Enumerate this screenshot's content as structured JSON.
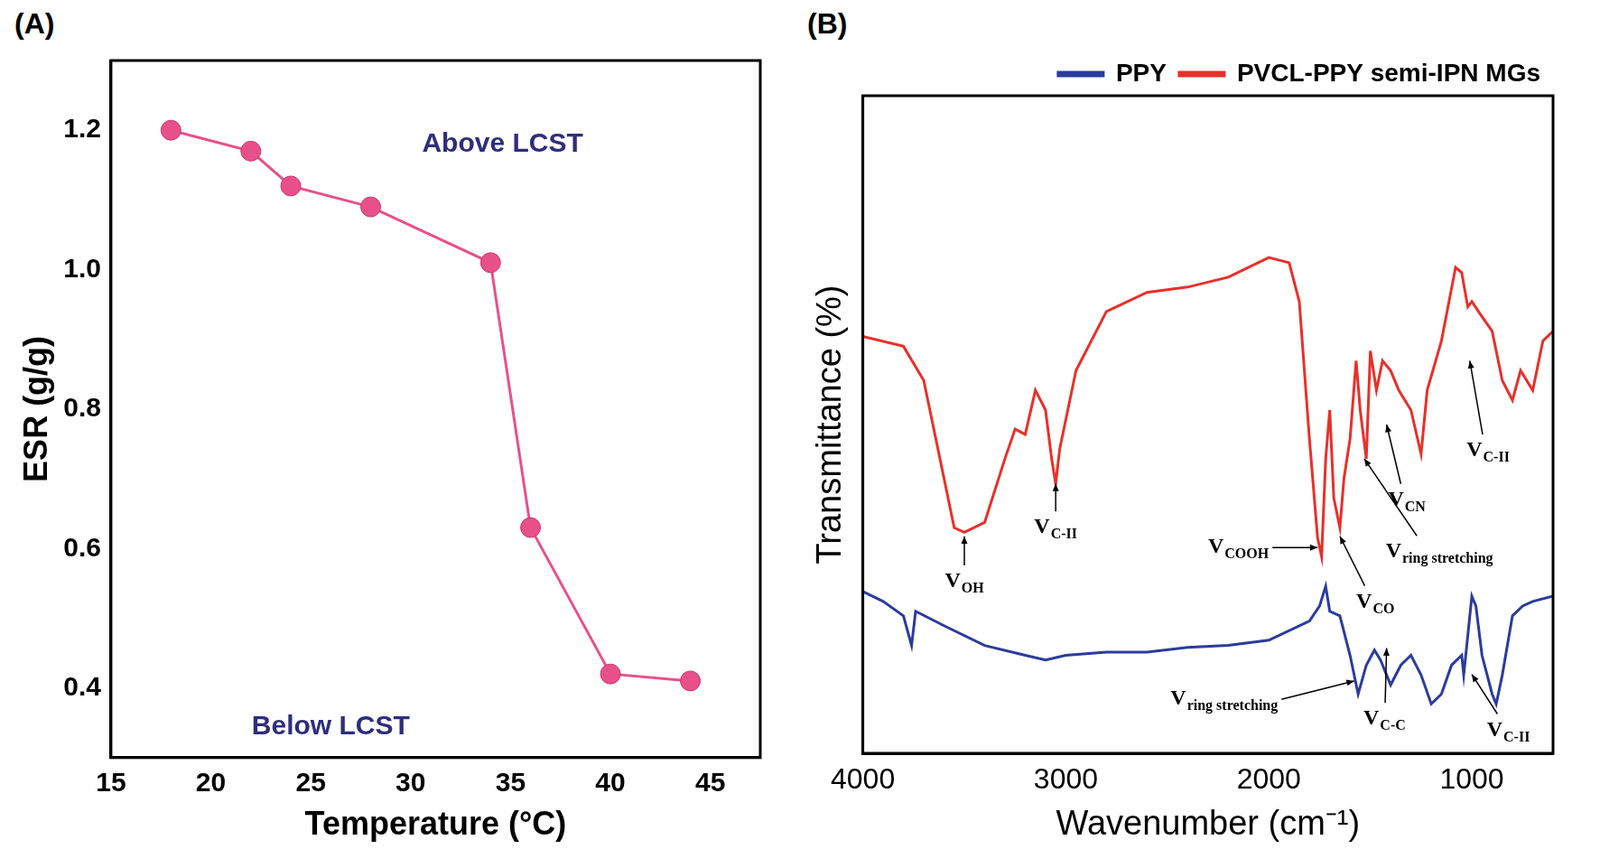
{
  "chart_data": [
    {
      "panel_label": "(A)",
      "type": "line",
      "x_label": "Temperature (°C)",
      "y_label": "ESR (g/g)",
      "x": [
        18,
        22,
        24,
        28,
        34,
        36,
        40,
        44
      ],
      "values": [
        1.2,
        1.17,
        1.12,
        1.09,
        1.01,
        0.63,
        0.42,
        0.41
      ],
      "color": "#e8508a",
      "marker": "circle",
      "line_style": "solid",
      "xlim": [
        15,
        47.5
      ],
      "xticks": [
        15,
        20,
        25,
        30,
        35,
        40,
        45
      ],
      "ylim": [
        0.3,
        1.3
      ],
      "yticks": [
        0.4,
        0.6,
        0.8,
        {
          "value": 1,
          "label": "1.0"
        },
        1.2
      ],
      "grid": false,
      "annotations": [
        {
          "text": "Above LCST",
          "x": 34.6,
          "y": 1.18
        },
        {
          "text": "Below LCST",
          "x": 26,
          "y": 0.344
        }
      ]
    },
    {
      "panel_label": "(B)",
      "type": "line",
      "x_label": "Wavenumber (cm⁻¹)",
      "y_label": "Transmittance (%)",
      "series": [
        {
          "name": "PPY",
          "color": "#2a3c9c",
          "line_style": "solid",
          "x": [
            4000,
            3900,
            3800,
            3760,
            3740,
            3600,
            3400,
            3200,
            3100,
            3000,
            2800,
            2600,
            2400,
            2200,
            2000,
            1800,
            1750,
            1720,
            1700,
            1650,
            1600,
            1560,
            1520,
            1480,
            1450,
            1400,
            1350,
            1300,
            1250,
            1200,
            1150,
            1100,
            1050,
            1040,
            1000,
            980,
            950,
            900,
            880,
            850,
            800,
            750,
            700,
            600
          ],
          "values": [
            24.6,
            23.1,
            20.9,
            16.4,
            21.6,
            19.4,
            16.4,
            14.9,
            14.2,
            14.9,
            15.4,
            15.4,
            16.1,
            16.4,
            17.2,
            20.1,
            22.4,
            25.4,
            21.6,
            20.9,
            14.9,
            9.0,
            13.4,
            15.7,
            14.2,
            10.4,
            13.4,
            14.9,
            11.9,
            7.5,
            9.0,
            13.4,
            14.9,
            11.9,
            23.9,
            22.4,
            14.9,
            9.0,
            7.5,
            11.9,
            20.9,
            22.4,
            23.1,
            23.9
          ]
        },
        {
          "name": "PVCL-PPY semi-IPN MGs",
          "color": "#e8302a",
          "line_style": "solid",
          "x": [
            4000,
            3800,
            3700,
            3600,
            3550,
            3500,
            3400,
            3300,
            3250,
            3200,
            3150,
            3100,
            3070,
            3050,
            3030,
            2950,
            2800,
            2600,
            2400,
            2200,
            2000,
            1900,
            1850,
            1800,
            1760,
            1740,
            1720,
            1700,
            1680,
            1650,
            1630,
            1600,
            1570,
            1550,
            1520,
            1500,
            1470,
            1440,
            1400,
            1360,
            1300,
            1250,
            1220,
            1150,
            1080,
            1050,
            1020,
            1000,
            950,
            900,
            850,
            800,
            760,
            700,
            650,
            600
          ],
          "values": [
            63.4,
            61.9,
            56.7,
            41.8,
            34.3,
            33.6,
            35.1,
            44.8,
            49.3,
            48.5,
            55.2,
            52.2,
            44.8,
            41.0,
            46.3,
            58.2,
            67.2,
            70.1,
            70.9,
            72.4,
            75.4,
            74.6,
            68.7,
            47.8,
            32.8,
            29.9,
            44.8,
            52.2,
            38.8,
            34.3,
            41.8,
            47.8,
            59.7,
            52.2,
            44.8,
            61.2,
            55.2,
            59.7,
            58.2,
            55.2,
            52.2,
            45.5,
            55.2,
            62.7,
            73.9,
            73.1,
            67.9,
            68.7,
            66.4,
            64.2,
            56.7,
            53.7,
            58.2,
            55.2,
            62.7,
            64.2
          ]
        }
      ],
      "xlim": [
        4000,
        600
      ],
      "xticks": [
        4000,
        3000,
        2000,
        1000
      ],
      "ylim": [
        0,
        100
      ],
      "tick_labels": "x",
      "grid": false,
      "legend": "top",
      "annotations": [
        {
          "text": "V",
          "subscript": "OH",
          "x": 3500,
          "y": 26.1,
          "arrow_to": [
            3500,
            33
          ]
        },
        {
          "text": "V",
          "subscript": "C-II",
          "x": 3050,
          "y": 34.3,
          "arrow_to": [
            3050,
            41
          ]
        },
        {
          "text": "V",
          "subscript": "COOH",
          "x": 2150,
          "y": 31.3,
          "arrow_to": [
            1760,
            31.3
          ]
        },
        {
          "text": "V",
          "subscript": "CO",
          "x": 1475,
          "y": 23,
          "arrow_to": [
            1650,
            33
          ]
        },
        {
          "text": "V",
          "subscript": "ring stretching",
          "x": 1160,
          "y": 30.6,
          "arrow_to": [
            1530,
            44.8
          ]
        },
        {
          "text": "V",
          "subscript": "CN",
          "x": 1320,
          "y": 38.5,
          "arrow_to": [
            1420,
            50
          ]
        },
        {
          "text": "V",
          "subscript": "C-II",
          "x": 920,
          "y": 46,
          "arrow_to": [
            1010,
            59.7
          ]
        },
        {
          "text": "V",
          "subscript": "ring stretching",
          "x": 2220,
          "y": 8.2,
          "arrow_to": [
            1580,
            11
          ]
        },
        {
          "text": "V",
          "subscript": "C-C",
          "x": 1430,
          "y": 5.2,
          "arrow_to": [
            1420,
            16
          ]
        },
        {
          "text": "V",
          "subscript": "C-II",
          "x": 820,
          "y": 3.5,
          "arrow_to": [
            1000,
            12
          ]
        }
      ]
    }
  ]
}
